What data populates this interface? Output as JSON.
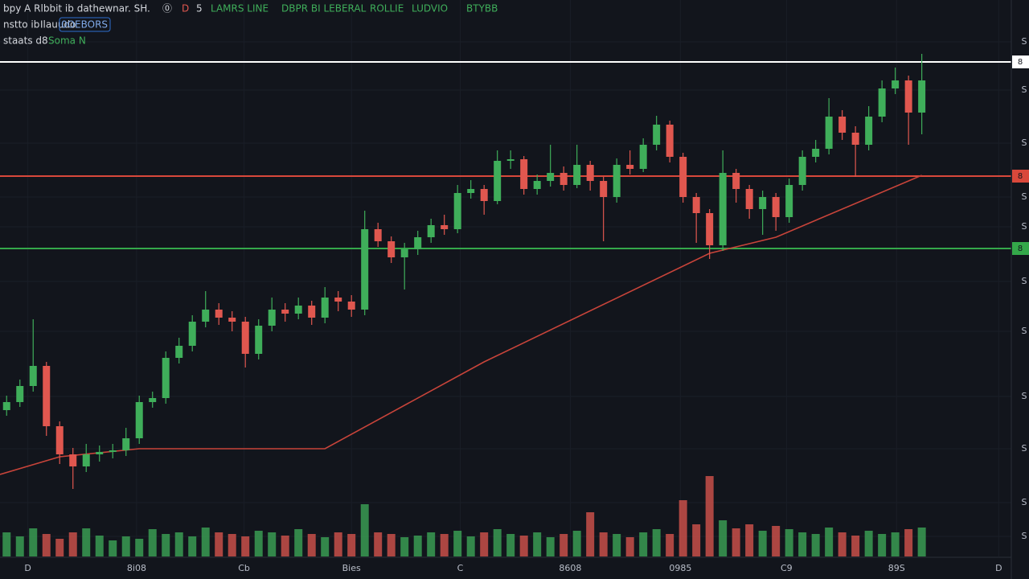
{
  "header": {
    "title": "bpy A Rlbbit ib  dathewnar. SH.",
    "icons": [
      "⓪",
      "D",
      "5"
    ],
    "indicators": [
      "LAMRS LINE",
      "DBPR BI LEBERAL",
      "ROLLIE",
      "LUDVIO",
      "BTYBB"
    ],
    "line2": [
      "nstto ib",
      "Ilauudo"
    ],
    "button": "0OEBORS",
    "line3": [
      "staats d8",
      "Soma N"
    ]
  },
  "chart_data": {
    "type": "candlestick",
    "up_color": "#3fae5a",
    "down_color": "#e0574f",
    "grid": true,
    "xlim": [
      -0.5,
      75.75
    ],
    "xticks": [
      {
        "value": 1.6,
        "label": "D"
      },
      {
        "value": 9.8,
        "label": "8i08"
      },
      {
        "value": 17.9,
        "label": "Cb"
      },
      {
        "value": 26,
        "label": "Bies"
      },
      {
        "value": 34.2,
        "label": "C"
      },
      {
        "value": 42.5,
        "label": "8608"
      },
      {
        "value": 50.8,
        "label": "0985"
      },
      {
        "value": 58.8,
        "label": "C9"
      },
      {
        "value": 67.1,
        "label": "89S"
      },
      {
        "value": 74.8,
        "label": "D"
      }
    ],
    "ylim": [
      0,
      692
    ],
    "yticks": [
      {
        "value": 640,
        "label": "S"
      },
      {
        "value": 580,
        "label": "S"
      },
      {
        "value": 514,
        "label": "S"
      },
      {
        "value": 447,
        "label": "S"
      },
      {
        "value": 410,
        "label": "S"
      },
      {
        "value": 342,
        "label": "S"
      },
      {
        "value": 280,
        "label": "S"
      },
      {
        "value": 199,
        "label": "S"
      },
      {
        "value": 134,
        "label": "S"
      },
      {
        "value": 67,
        "label": "S"
      },
      {
        "value": 25,
        "label": "S"
      }
    ],
    "open": [
      182,
      192,
      212,
      237,
      162,
      127,
      112,
      127,
      130,
      132,
      147,
      192,
      197,
      247,
      262,
      292,
      307,
      297,
      292,
      252,
      287,
      307,
      302,
      312,
      297,
      322,
      317,
      307,
      407,
      392,
      372,
      382,
      397,
      412,
      407,
      452,
      457,
      442,
      492,
      494,
      457,
      467,
      477,
      462,
      487,
      467,
      447,
      487,
      482,
      512,
      537,
      497,
      447,
      427,
      387,
      477,
      457,
      432,
      447,
      422,
      462,
      497,
      507,
      547,
      527,
      512,
      547,
      582,
      592,
      552
    ],
    "close": [
      192,
      212,
      237,
      162,
      127,
      112,
      127,
      130,
      132,
      147,
      192,
      197,
      247,
      262,
      292,
      307,
      297,
      292,
      252,
      287,
      307,
      302,
      312,
      297,
      322,
      317,
      307,
      407,
      392,
      372,
      382,
      397,
      412,
      407,
      452,
      457,
      442,
      492,
      494,
      457,
      467,
      477,
      462,
      487,
      467,
      447,
      487,
      482,
      512,
      537,
      497,
      447,
      427,
      387,
      477,
      457,
      432,
      447,
      422,
      462,
      497,
      507,
      547,
      527,
      512,
      547,
      582,
      592,
      552,
      592
    ],
    "high": [
      200,
      220,
      295,
      242,
      168,
      135,
      140,
      138,
      140,
      160,
      200,
      205,
      255,
      272,
      300,
      330,
      315,
      305,
      298,
      295,
      322,
      315,
      322,
      318,
      335,
      330,
      325,
      430,
      415,
      398,
      390,
      405,
      420,
      425,
      462,
      468,
      462,
      505,
      505,
      498,
      475,
      512,
      485,
      512,
      492,
      472,
      495,
      505,
      520,
      548,
      542,
      502,
      452,
      432,
      505,
      482,
      462,
      455,
      452,
      470,
      505,
      518,
      570,
      555,
      535,
      560,
      592,
      608,
      598,
      625
    ],
    "low": [
      175,
      186,
      205,
      150,
      115,
      84,
      105,
      118,
      122,
      125,
      140,
      185,
      190,
      240,
      255,
      285,
      288,
      280,
      235,
      245,
      280,
      292,
      295,
      288,
      290,
      305,
      298,
      300,
      385,
      365,
      332,
      375,
      390,
      400,
      402,
      445,
      425,
      438,
      482,
      450,
      450,
      460,
      455,
      458,
      455,
      392,
      440,
      475,
      478,
      505,
      490,
      440,
      390,
      370,
      380,
      440,
      420,
      400,
      405,
      415,
      455,
      490,
      500,
      518,
      472,
      505,
      540,
      575,
      512,
      525
    ],
    "volume": [
      30,
      25,
      35,
      28,
      22,
      30,
      35,
      26,
      20,
      25,
      22,
      34,
      28,
      30,
      25,
      36,
      30,
      28,
      25,
      32,
      30,
      26,
      34,
      28,
      24,
      30,
      28,
      65,
      30,
      28,
      24,
      26,
      30,
      28,
      32,
      25,
      30,
      34,
      28,
      26,
      30,
      24,
      28,
      32,
      55,
      30,
      28,
      24,
      30,
      34,
      28,
      70,
      40,
      100,
      45,
      35,
      40,
      32,
      38,
      34,
      30,
      28,
      36,
      30,
      26,
      32,
      28,
      30,
      34,
      36
    ],
    "volume_ylim": [
      0,
      120
    ],
    "ma": {
      "color": "#c8443a",
      "x": [
        -0.5,
        4,
        10,
        24,
        36,
        53,
        58,
        69
      ],
      "values": [
        102,
        124,
        134,
        134,
        242,
        377,
        397,
        474
      ]
    },
    "levels": [
      {
        "value": 615,
        "color": "#ffffff",
        "label": "8"
      },
      {
        "value": 473,
        "color": "#d9483b",
        "label": "8"
      },
      {
        "value": 383,
        "color": "#34a84a",
        "label": "8"
      }
    ]
  }
}
